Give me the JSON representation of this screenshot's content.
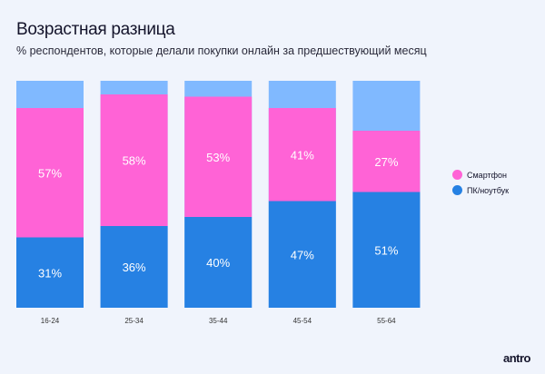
{
  "chart_data": {
    "type": "bar",
    "stacked": true,
    "title": "Возрастная разница",
    "subtitle": "% респондентов, которые делали покупки онлайн за предшествующий месяц",
    "categories": [
      "16-24",
      "25-34",
      "35-44",
      "45-54",
      "55-64"
    ],
    "series": [
      {
        "name": "ПК/ноутбук",
        "color": "#2681e3",
        "values": [
          31,
          36,
          40,
          47,
          51
        ]
      },
      {
        "name": "Смартфон",
        "color": "#ff63d6",
        "values": [
          57,
          58,
          53,
          41,
          27
        ]
      }
    ],
    "remainder_color": "#80b9ff",
    "ylim": [
      0,
      100
    ],
    "legend": "right",
    "grid": false
  },
  "brand": "antro"
}
